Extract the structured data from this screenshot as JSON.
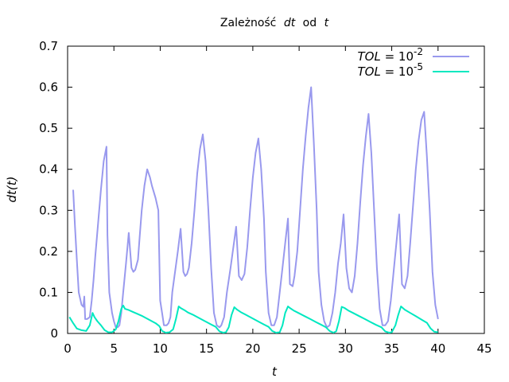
{
  "chart_data": {
    "type": "line",
    "title": {
      "prefix": "Zależność",
      "var1": "dt",
      "mid": "od",
      "var2": "t"
    },
    "xlabel": "t",
    "ylabel": "dt(t)",
    "xlim": [
      0,
      45
    ],
    "ylim": [
      0,
      0.7
    ],
    "xticks": [
      0,
      5,
      10,
      15,
      20,
      25,
      30,
      35,
      40,
      45
    ],
    "yticks": [
      0,
      0.1,
      0.2,
      0.3,
      0.4,
      0.5,
      0.6,
      0.7
    ],
    "ytick_labels": [
      "0",
      "0.1",
      "0.2",
      "0.3",
      "0.4",
      "0.5",
      "0.6",
      "0.7"
    ],
    "grid": false,
    "legend_position": "top-right",
    "series": [
      {
        "name": "TOL = 10^-2",
        "legend": {
          "italic": "TOL",
          "rest": " = 10",
          "exp": "-2"
        },
        "color": "#9999ee",
        "x": [
          0.6,
          0.8,
          1.0,
          1.2,
          1.5,
          1.7,
          1.8,
          1.9,
          2.1,
          2.4,
          2.6,
          2.8,
          3.0,
          3.3,
          3.6,
          3.9,
          4.2,
          4.3,
          4.5,
          4.8,
          5.0,
          5.2,
          5.4,
          5.6,
          5.8,
          6.0,
          6.3,
          6.6,
          6.9,
          7.1,
          7.3,
          7.6,
          7.8,
          8.0,
          8.3,
          8.6,
          8.9,
          9.1,
          9.5,
          9.8,
          10.0,
          10.2,
          10.4,
          10.7,
          10.9,
          11.1,
          11.3,
          11.6,
          11.9,
          12.2,
          12.5,
          12.7,
          12.9,
          13.1,
          13.4,
          13.7,
          14.0,
          14.3,
          14.6,
          14.9,
          15.2,
          15.5,
          15.8,
          16.1,
          16.4,
          16.6,
          16.9,
          17.2,
          17.6,
          17.9,
          18.2,
          18.5,
          18.8,
          19.1,
          19.4,
          19.7,
          20.0,
          20.3,
          20.6,
          20.9,
          21.2,
          21.4,
          21.7,
          22.0,
          22.3,
          22.6,
          22.9,
          23.2,
          23.5,
          23.8,
          24.0,
          24.3,
          24.5,
          24.8,
          25.1,
          25.4,
          25.7,
          26.0,
          26.3,
          26.6,
          26.9,
          27.1,
          27.4,
          27.7,
          28.0,
          28.3,
          28.6,
          28.9,
          29.2,
          29.5,
          29.8,
          30.1,
          30.4,
          30.7,
          31.0,
          31.3,
          31.6,
          31.9,
          32.2,
          32.5,
          32.8,
          33.1,
          33.4,
          33.7,
          34.0,
          34.3,
          34.6,
          34.9,
          35.2,
          35.5,
          35.8,
          36.1,
          36.4,
          36.7,
          37.0,
          37.3,
          37.6,
          37.9,
          38.2,
          38.5,
          38.8,
          39.1,
          39.4,
          39.7,
          40.0
        ],
        "y": [
          0.35,
          0.26,
          0.18,
          0.1,
          0.07,
          0.065,
          0.09,
          0.035,
          0.035,
          0.04,
          0.08,
          0.13,
          0.19,
          0.27,
          0.35,
          0.42,
          0.455,
          0.24,
          0.1,
          0.05,
          0.03,
          0.015,
          0.015,
          0.02,
          0.05,
          0.1,
          0.17,
          0.245,
          0.16,
          0.15,
          0.155,
          0.18,
          0.24,
          0.3,
          0.36,
          0.4,
          0.38,
          0.36,
          0.33,
          0.3,
          0.08,
          0.05,
          0.02,
          0.02,
          0.025,
          0.04,
          0.1,
          0.15,
          0.2,
          0.255,
          0.15,
          0.14,
          0.145,
          0.16,
          0.22,
          0.3,
          0.39,
          0.45,
          0.485,
          0.42,
          0.3,
          0.16,
          0.05,
          0.02,
          0.015,
          0.02,
          0.04,
          0.1,
          0.16,
          0.21,
          0.26,
          0.14,
          0.13,
          0.145,
          0.21,
          0.3,
          0.38,
          0.44,
          0.475,
          0.4,
          0.28,
          0.15,
          0.05,
          0.02,
          0.02,
          0.04,
          0.1,
          0.16,
          0.22,
          0.28,
          0.12,
          0.115,
          0.14,
          0.2,
          0.3,
          0.4,
          0.48,
          0.55,
          0.6,
          0.46,
          0.3,
          0.15,
          0.07,
          0.03,
          0.015,
          0.02,
          0.05,
          0.1,
          0.17,
          0.22,
          0.29,
          0.16,
          0.11,
          0.1,
          0.14,
          0.22,
          0.32,
          0.41,
          0.48,
          0.535,
          0.44,
          0.3,
          0.16,
          0.06,
          0.02,
          0.02,
          0.03,
          0.08,
          0.15,
          0.22,
          0.29,
          0.12,
          0.11,
          0.14,
          0.22,
          0.31,
          0.4,
          0.47,
          0.52,
          0.54,
          0.43,
          0.3,
          0.15,
          0.07,
          0.035
        ],
        "legend_seg": 0
      },
      {
        "name": "TOL = 10^-5",
        "legend": {
          "italic": "TOL",
          "rest": " = 10",
          "exp": "-5"
        },
        "color": "#00e8c0",
        "x": [
          0.2,
          0.6,
          1.0,
          1.5,
          2.0,
          2.4,
          2.7,
          2.9,
          3.2,
          3.6,
          4.0,
          4.4,
          4.8,
          5.2,
          5.5,
          5.8,
          6.0,
          6.2,
          6.6,
          7.0,
          7.5,
          8.0,
          8.5,
          9.0,
          9.5,
          9.9,
          10.2,
          10.6,
          11.0,
          11.4,
          11.7,
          12.0,
          12.2,
          12.6,
          13.0,
          13.5,
          14.0,
          14.5,
          15.0,
          15.5,
          16.0,
          16.4,
          16.8,
          17.1,
          17.4,
          17.7,
          18.0,
          18.3,
          18.7,
          19.2,
          19.7,
          20.2,
          20.7,
          21.2,
          21.7,
          22.1,
          22.5,
          22.9,
          23.2,
          23.5,
          23.8,
          24.0,
          24.4,
          25.0,
          25.6,
          26.2,
          26.8,
          27.4,
          27.9,
          28.3,
          28.7,
          29.0,
          29.3,
          29.6,
          29.9,
          30.3,
          30.9,
          31.5,
          32.1,
          32.7,
          33.3,
          33.9,
          34.3,
          34.7,
          35.0,
          35.4,
          35.7,
          36.0,
          36.4,
          37.0,
          37.6,
          38.2,
          38.8,
          39.2,
          39.6,
          40.0
        ],
        "y": [
          0.04,
          0.025,
          0.012,
          0.008,
          0.006,
          0.02,
          0.05,
          0.04,
          0.03,
          0.02,
          0.008,
          0.003,
          0.003,
          0.01,
          0.03,
          0.06,
          0.068,
          0.06,
          0.057,
          0.053,
          0.048,
          0.043,
          0.037,
          0.031,
          0.025,
          0.018,
          0.006,
          0.002,
          0.003,
          0.01,
          0.035,
          0.066,
          0.062,
          0.057,
          0.051,
          0.046,
          0.04,
          0.034,
          0.028,
          0.022,
          0.016,
          0.005,
          0.002,
          0.003,
          0.015,
          0.045,
          0.064,
          0.058,
          0.052,
          0.046,
          0.04,
          0.034,
          0.028,
          0.022,
          0.016,
          0.006,
          0.002,
          0.003,
          0.02,
          0.05,
          0.066,
          0.062,
          0.056,
          0.049,
          0.042,
          0.035,
          0.028,
          0.021,
          0.015,
          0.006,
          0.002,
          0.005,
          0.03,
          0.065,
          0.062,
          0.056,
          0.049,
          0.042,
          0.035,
          0.028,
          0.021,
          0.015,
          0.005,
          0.002,
          0.003,
          0.02,
          0.045,
          0.066,
          0.058,
          0.05,
          0.042,
          0.034,
          0.026,
          0.012,
          0.004,
          0.003
        ],
        "legend_seg": 1
      }
    ]
  }
}
